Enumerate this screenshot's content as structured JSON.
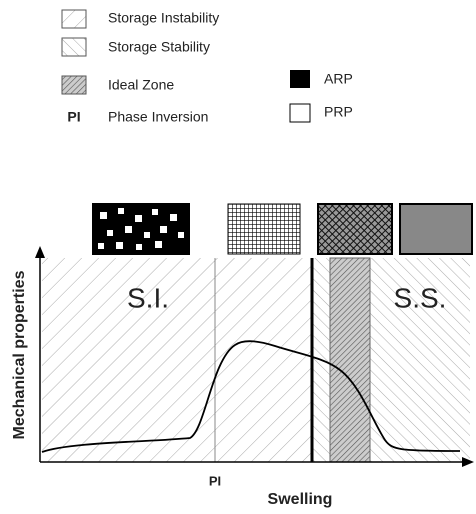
{
  "legend": {
    "items": [
      {
        "label": "Storage Instability"
      },
      {
        "label": "Storage Stability"
      },
      {
        "label": "Ideal Zone"
      },
      {
        "symbol": "PI",
        "label": "Phase Inversion"
      }
    ],
    "phases": [
      {
        "label": "ARP"
      },
      {
        "label": "PRP"
      }
    ]
  },
  "plot": {
    "y_label": "Mechanical properties",
    "x_label": "Swelling",
    "regions": {
      "left": "S.I.",
      "right": "S.S."
    },
    "marker": "PI"
  }
}
